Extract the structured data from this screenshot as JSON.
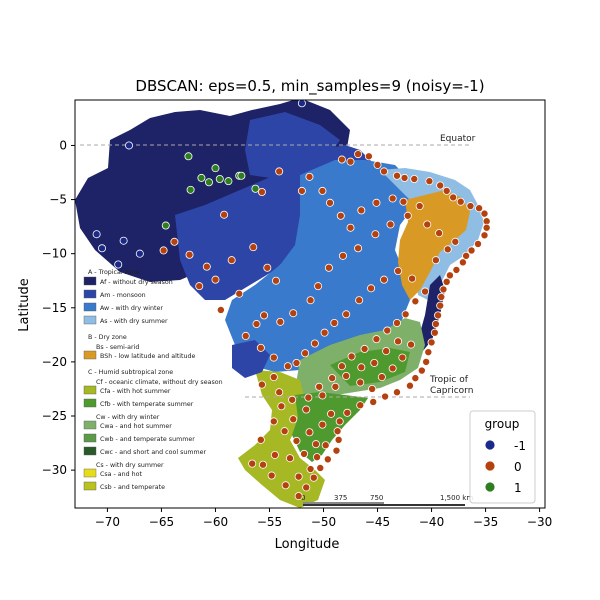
{
  "chart_data": {
    "type": "scatter",
    "title": "DBSCAN: eps=0.5, min_samples=9 (noisy=-1)",
    "xlabel": "Longitude",
    "ylabel": "Latitude",
    "xlim": [
      -73,
      -29.5
    ],
    "ylim": [
      -33.5,
      4.2
    ],
    "xticks": [
      -70,
      -65,
      -60,
      -55,
      -50,
      -45,
      -40,
      -35,
      -30
    ],
    "yticks": [
      0,
      -5,
      -10,
      -15,
      -20,
      -25,
      -30
    ],
    "legend": {
      "title": "group",
      "placement": "lower-right"
    },
    "series": [
      {
        "name": "-1",
        "color": "#1a2a8a",
        "points": [
          [
            -68,
            0
          ],
          [
            -52,
            3.9
          ],
          [
            -69,
            -11
          ],
          [
            -71,
            -8.2
          ],
          [
            -68.5,
            -8.8
          ],
          [
            -67,
            -10
          ],
          [
            -70.5,
            -9.5
          ]
        ]
      },
      {
        "name": "0",
        "color": "#b5410e",
        "points": [
          [
            -46.8,
            -0.8
          ],
          [
            -45.8,
            -1
          ],
          [
            -47.5,
            -1.5
          ],
          [
            -48.3,
            -1.3
          ],
          [
            -45,
            -1.8
          ],
          [
            -44.4,
            -2.4
          ],
          [
            -43.2,
            -2.8
          ],
          [
            -42.5,
            -3
          ],
          [
            -41.6,
            -3.1
          ],
          [
            -40.2,
            -3.3
          ],
          [
            -39.2,
            -3.7
          ],
          [
            -38.6,
            -4.2
          ],
          [
            -38,
            -4.8
          ],
          [
            -37.3,
            -5.2
          ],
          [
            -36.4,
            -5.6
          ],
          [
            -35.6,
            -5.8
          ],
          [
            -35.1,
            -6.3
          ],
          [
            -34.9,
            -7
          ],
          [
            -34.9,
            -7.6
          ],
          [
            -35.1,
            -8.3
          ],
          [
            -35.7,
            -9.1
          ],
          [
            -36.3,
            -9.7
          ],
          [
            -36.8,
            -10.2
          ],
          [
            -37.1,
            -10.8
          ],
          [
            -37.7,
            -11.5
          ],
          [
            -38.3,
            -12
          ],
          [
            -38.6,
            -12.6
          ],
          [
            -38.9,
            -13.3
          ],
          [
            -39.1,
            -14
          ],
          [
            -39.2,
            -14.8
          ],
          [
            -39.4,
            -15.7
          ],
          [
            -39.6,
            -16.5
          ],
          [
            -39.7,
            -17.3
          ],
          [
            -40,
            -18.2
          ],
          [
            -40.3,
            -19.1
          ],
          [
            -40.5,
            -20
          ],
          [
            -40.9,
            -20.8
          ],
          [
            -41.5,
            -21.5
          ],
          [
            -42,
            -22.2
          ],
          [
            -43.2,
            -22.8
          ],
          [
            -44.3,
            -23.2
          ],
          [
            -45.4,
            -23.7
          ],
          [
            -46.6,
            -24
          ],
          [
            -47.8,
            -24.7
          ],
          [
            -48.5,
            -25.5
          ],
          [
            -48.7,
            -26.4
          ],
          [
            -48.6,
            -27.2
          ],
          [
            -48.8,
            -28.2
          ],
          [
            -49.6,
            -29
          ],
          [
            -50.3,
            -29.8
          ],
          [
            -50.9,
            -30.7
          ],
          [
            -51.6,
            -31.6
          ],
          [
            -52.3,
            -32.4
          ],
          [
            -42.2,
            -6.5
          ],
          [
            -43.8,
            -7.3
          ],
          [
            -45.2,
            -8.2
          ],
          [
            -46.8,
            -9.5
          ],
          [
            -48.2,
            -10.2
          ],
          [
            -49.5,
            -11.3
          ],
          [
            -50.5,
            -13
          ],
          [
            -51.2,
            -14.3
          ],
          [
            -52.8,
            -15.5
          ],
          [
            -54,
            -16.3
          ],
          [
            -55.5,
            -15.7
          ],
          [
            -56.2,
            -16.5
          ],
          [
            -57.2,
            -17.6
          ],
          [
            -55.8,
            -18.7
          ],
          [
            -54.6,
            -19.6
          ],
          [
            -53.3,
            -20.4
          ],
          [
            -54.6,
            -21.4
          ],
          [
            -55.7,
            -22.1
          ],
          [
            -54.1,
            -22.8
          ],
          [
            -52.9,
            -23.5
          ],
          [
            -51.4,
            -23.3
          ],
          [
            -50.4,
            -22.3
          ],
          [
            -49.2,
            -21.5
          ],
          [
            -48.3,
            -20.4
          ],
          [
            -47.4,
            -19.5
          ],
          [
            -46.2,
            -18.8
          ],
          [
            -45.1,
            -17.9
          ],
          [
            -44.1,
            -17.1
          ],
          [
            -43.2,
            -16.4
          ],
          [
            -42.4,
            -15.6
          ],
          [
            -41.5,
            -14.4
          ],
          [
            -40.6,
            -13.5
          ],
          [
            -41.8,
            -12.3
          ],
          [
            -43.1,
            -11.6
          ],
          [
            -44.4,
            -12.4
          ],
          [
            -45.6,
            -13.2
          ],
          [
            -46.7,
            -14.3
          ],
          [
            -47.9,
            -15.6
          ],
          [
            -49,
            -16.4
          ],
          [
            -49.9,
            -17.3
          ],
          [
            -50.8,
            -18.3
          ],
          [
            -51.7,
            -19.2
          ],
          [
            -52.5,
            -20.1
          ],
          [
            -60.8,
            -11.2
          ],
          [
            -62.4,
            -10.1
          ],
          [
            -63.8,
            -8.9
          ],
          [
            -64.8,
            -9.7
          ],
          [
            -61.5,
            -13
          ],
          [
            -60,
            -12.4
          ],
          [
            -58.5,
            -10.6
          ],
          [
            -56.5,
            -9.4
          ],
          [
            -55.2,
            -11.3
          ],
          [
            -54.4,
            -12.5
          ],
          [
            -57.8,
            -13.7
          ],
          [
            -59.5,
            -15.2
          ],
          [
            -59.2,
            -6.4
          ],
          [
            -55.7,
            -4.3
          ],
          [
            -54.1,
            -2.4
          ],
          [
            -52,
            -4.2
          ],
          [
            -51.3,
            -2.9
          ],
          [
            -50.1,
            -4.2
          ],
          [
            -49.4,
            -5.3
          ],
          [
            -48.4,
            -6.5
          ],
          [
            -47.5,
            -7.6
          ],
          [
            -46.5,
            -6
          ],
          [
            -45.1,
            -5.3
          ],
          [
            -43.6,
            -4.9
          ],
          [
            -42.6,
            -5.2
          ],
          [
            -41.1,
            -5.6
          ],
          [
            -40.4,
            -7.3
          ],
          [
            -39.3,
            -8.1
          ],
          [
            -37.8,
            -8.9
          ],
          [
            -38.5,
            -9.6
          ],
          [
            -39.6,
            -10.6
          ],
          [
            -47.9,
            -21.3
          ],
          [
            -46.6,
            -21.9
          ],
          [
            -45.5,
            -22.5
          ],
          [
            -44.6,
            -21.4
          ],
          [
            -43.6,
            -20.6
          ],
          [
            -42.7,
            -19.6
          ],
          [
            -41.9,
            -18.4
          ],
          [
            -43.1,
            -18.1
          ],
          [
            -44.2,
            -19
          ],
          [
            -45.3,
            -20.1
          ],
          [
            -46.5,
            -20.5
          ],
          [
            -48.9,
            -22.3
          ],
          [
            -50.1,
            -23.1
          ],
          [
            -51.6,
            -24.4
          ],
          [
            -52.8,
            -25.3
          ],
          [
            -53.6,
            -26.4
          ],
          [
            -52.5,
            -27.3
          ],
          [
            -51.3,
            -26.5
          ],
          [
            -50.1,
            -25.8
          ],
          [
            -49.3,
            -24.8
          ],
          [
            -50.7,
            -27.6
          ],
          [
            -51.8,
            -28.5
          ],
          [
            -53.1,
            -28.9
          ],
          [
            -54.5,
            -28.6
          ],
          [
            -55.6,
            -29.5
          ],
          [
            -56.6,
            -29.4
          ],
          [
            -54.8,
            -30.5
          ],
          [
            -53.5,
            -31.4
          ],
          [
            -52.3,
            -30.6
          ],
          [
            -51.2,
            -29.9
          ],
          [
            -50.6,
            -28.8
          ],
          [
            -49.8,
            -27.7
          ],
          [
            -55.8,
            -27.2
          ],
          [
            -54.6,
            -25.5
          ],
          [
            -53.9,
            -24.1
          ]
        ]
      },
      {
        "name": "1",
        "color": "#2e7d1e",
        "points": [
          [
            -62.5,
            -1
          ],
          [
            -60,
            -2.1
          ],
          [
            -59.6,
            -3.1
          ],
          [
            -60.6,
            -3.4
          ],
          [
            -61.3,
            -3
          ],
          [
            -62.3,
            -4.1
          ],
          [
            -58.8,
            -3.3
          ],
          [
            -57.8,
            -2.8
          ],
          [
            -57.6,
            -2.8
          ],
          [
            -56.3,
            -4
          ],
          [
            -64.6,
            -7.4
          ]
        ]
      }
    ]
  },
  "background_map": {
    "legend_text": [
      "A - Tropical zone",
      "Af - without dry season",
      "Am - monsoon",
      "Aw - with dry winter",
      "As - with dry summer",
      "B - Dry zone",
      "Bs - semi-arid",
      "BSh - low latitude and altitude",
      "C - Humid subtropical zone",
      "Cf - oceanic climate, without dry season",
      "Cfa - with hot summer",
      "Cfb - with temperate summer",
      "Cw - with dry winter",
      "Cwa - and hot summer",
      "Cwb - and temperate summer",
      "Cwc - and short and cool summer",
      "Cs - with dry summer",
      "Csa - and hot",
      "Csb - and temperate"
    ],
    "equator_label": "Equator",
    "tropic_label": "Tropic of Capricorn",
    "scale_labels": [
      "0",
      "375",
      "750",
      "1,500 km"
    ],
    "colors": {
      "Af": "#1e2266",
      "Am": "#2e45a8",
      "Aw": "#3a7acc",
      "As": "#8fbde3",
      "BSh": "#d89a25",
      "Cfa": "#a6b823",
      "Cfb": "#4f9a2e",
      "Cwa": "#7fb06a",
      "Cwb": "#5a9a48",
      "Cwc": "#2b5a2a",
      "Csa": "#e6dc1a",
      "Csb": "#b9c21e"
    }
  }
}
